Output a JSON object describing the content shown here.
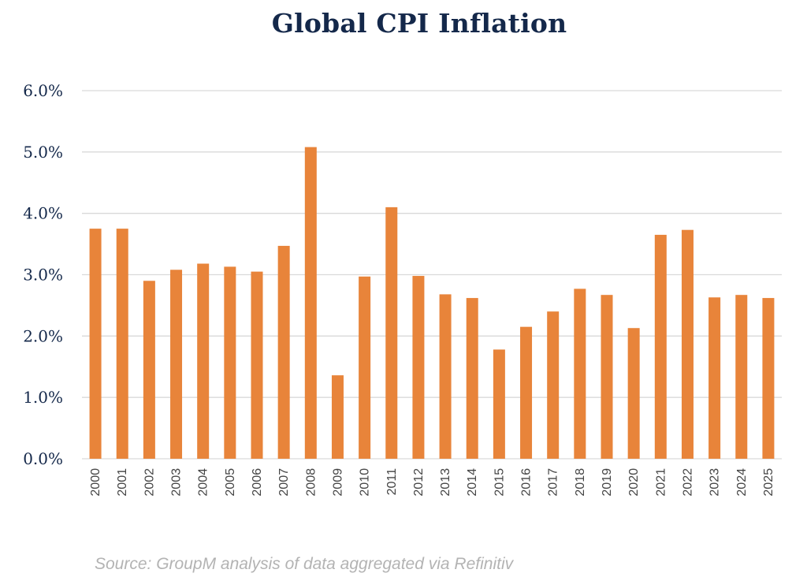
{
  "chart_data": {
    "type": "bar",
    "title": "Global CPI Inflation",
    "xlabel": "",
    "ylabel": "",
    "ylim": [
      0,
      6
    ],
    "grid": true,
    "yticks": [
      "0.0%",
      "1.0%",
      "2.0%",
      "3.0%",
      "4.0%",
      "5.0%",
      "6.0%"
    ],
    "categories": [
      "2000",
      "2001",
      "2002",
      "2003",
      "2004",
      "2005",
      "2006",
      "2007",
      "2008",
      "2009",
      "2010",
      "2011",
      "2012",
      "2013",
      "2014",
      "2015",
      "2016",
      "2017",
      "2018",
      "2019",
      "2020",
      "2021",
      "2022",
      "2023",
      "2024",
      "2025"
    ],
    "series": [
      {
        "name": "Global CPI Inflation",
        "color": "#e8843a",
        "values": [
          3.75,
          3.75,
          2.9,
          3.08,
          3.18,
          3.13,
          3.05,
          3.47,
          5.08,
          1.36,
          2.97,
          4.1,
          2.98,
          2.68,
          2.62,
          1.78,
          2.15,
          2.4,
          2.77,
          2.67,
          2.13,
          3.65,
          3.73,
          2.63,
          2.67,
          2.62
        ]
      }
    ],
    "gridline_color": "#d9d9d9"
  },
  "source": "Source: GroupM analysis of data aggregated via Refinitiv"
}
